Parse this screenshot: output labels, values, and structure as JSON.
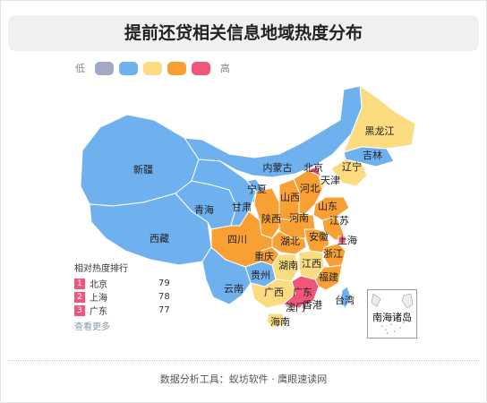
{
  "title": "提前还贷相关信息地域热度分布",
  "legend": {
    "low_label": "低",
    "high_label": "高",
    "colors": [
      "#a3a9c4",
      "#6fb0ee",
      "#fbdc80",
      "#f9a035",
      "#f0557a"
    ]
  },
  "chart_data": {
    "type": "choropleth-map",
    "title": "提前还贷相关信息地域热度分布",
    "level_scale": [
      "低",
      "高"
    ],
    "regions": [
      {
        "name": "黑龙江",
        "level": 2
      },
      {
        "name": "吉林",
        "level": 1
      },
      {
        "name": "辽宁",
        "level": 2
      },
      {
        "name": "内蒙古",
        "level": 1
      },
      {
        "name": "北京",
        "level": 4
      },
      {
        "name": "天津",
        "level": 2
      },
      {
        "name": "河北",
        "level": 3
      },
      {
        "name": "山西",
        "level": 3
      },
      {
        "name": "山东",
        "level": 3
      },
      {
        "name": "新疆",
        "level": 1
      },
      {
        "name": "宁夏",
        "level": 1
      },
      {
        "name": "甘肃",
        "level": 1
      },
      {
        "name": "青海",
        "level": 1
      },
      {
        "name": "陕西",
        "level": 3
      },
      {
        "name": "河南",
        "level": 3
      },
      {
        "name": "江苏",
        "level": 3
      },
      {
        "name": "西藏",
        "level": 1
      },
      {
        "name": "四川",
        "level": 3
      },
      {
        "name": "湖北",
        "level": 3
      },
      {
        "name": "安徽",
        "level": 3
      },
      {
        "name": "上海",
        "level": 4
      },
      {
        "name": "重庆",
        "level": 3
      },
      {
        "name": "浙江",
        "level": 3
      },
      {
        "name": "湖南",
        "level": 2
      },
      {
        "name": "江西",
        "level": 2
      },
      {
        "name": "贵州",
        "level": 1
      },
      {
        "name": "福建",
        "level": 3
      },
      {
        "name": "云南",
        "level": 1
      },
      {
        "name": "广西",
        "level": 2
      },
      {
        "name": "广东",
        "level": 4
      },
      {
        "name": "台湾",
        "level": 1
      },
      {
        "name": "澳门",
        "level": 0
      },
      {
        "name": "香港",
        "level": 0
      },
      {
        "name": "海南",
        "level": 2
      },
      {
        "name": "南海诸岛",
        "level": 0
      }
    ]
  },
  "ranking": {
    "title": "相对热度排行",
    "items": [
      {
        "rank": "1",
        "name": "北京",
        "value": "79"
      },
      {
        "rank": "2",
        "name": "上海",
        "value": "78"
      },
      {
        "rank": "3",
        "name": "广东",
        "value": "77"
      }
    ],
    "more_label": "查看更多"
  },
  "inset_label": "南海诸岛",
  "footer": "数据分析工具：蚁坊软件 · 鹰眼速读网"
}
